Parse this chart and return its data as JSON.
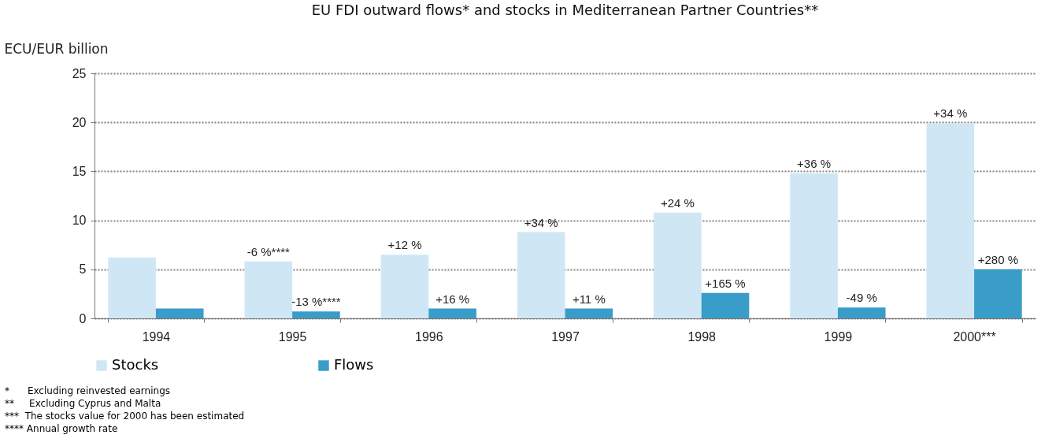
{
  "chart_data": {
    "type": "bar",
    "title": "EU FDI outward flows* and stocks in Mediterranean Partner Countries**",
    "ylabel": "ECU/EUR billion",
    "categories": [
      "1994",
      "1995",
      "1996",
      "1997",
      "1998",
      "1999",
      "2000***"
    ],
    "series": [
      {
        "name": "Stocks",
        "color": "#cfe7f5",
        "values": [
          6.2,
          5.8,
          6.5,
          8.8,
          10.8,
          14.8,
          19.9
        ]
      },
      {
        "name": "Flows",
        "color": "#3a9cc9",
        "values": [
          1.0,
          0.7,
          1.0,
          1.0,
          2.6,
          1.1,
          5.0
        ]
      }
    ],
    "ylim": [
      0,
      25
    ],
    "yticks": [
      0,
      5,
      10,
      15,
      20,
      25
    ],
    "grid": "y",
    "legend": "bottom",
    "annotations": [
      {
        "text": "-6 %****",
        "x": "1995",
        "y": 5.8
      },
      {
        "text": "+12 %",
        "x": "1996",
        "y": 6.5
      },
      {
        "text": "+34 %",
        "x": "1997",
        "y": 8.8
      },
      {
        "text": "+24 %",
        "x": "1998",
        "y": 10.8
      },
      {
        "text": "+36 %",
        "x": "1999",
        "y": 14.8
      },
      {
        "text": "+34 %",
        "x": "2000***",
        "y": 19.9
      },
      {
        "text": "-13 %****",
        "x": "1995",
        "y": 0.7
      },
      {
        "text": "+16 %",
        "x": "1996",
        "y": 1.0
      },
      {
        "text": "+11 %",
        "x": "1997",
        "y": 1.0
      },
      {
        "text": "+165 %",
        "x": "1998",
        "y": 2.6
      },
      {
        "text": "-49 %",
        "x": "1999",
        "y": 1.1
      },
      {
        "text": "+280 %",
        "x": "2000***",
        "y": 5.0
      },
      "*      Excluding reinvested earnings",
      "**     Excluding Cyprus and Malta",
      "***  The stocks value for 2000 has been estimated",
      "**** Annual growth rate"
    ]
  }
}
